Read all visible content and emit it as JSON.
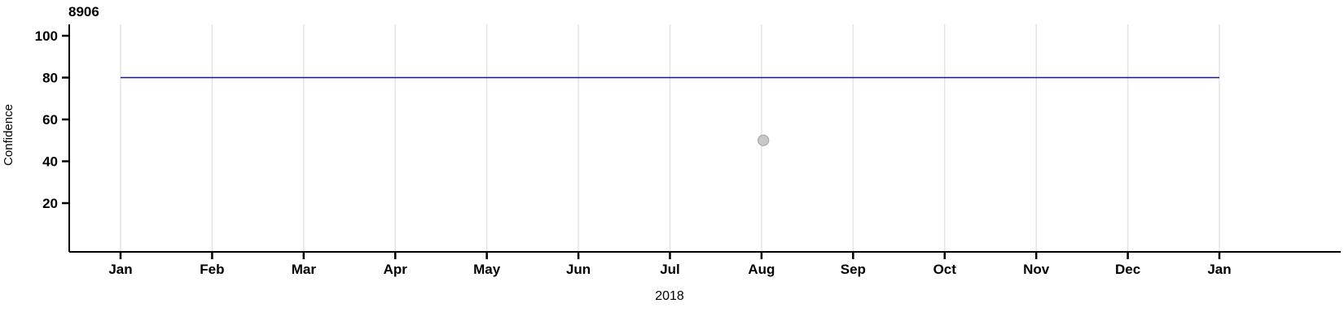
{
  "page": {
    "background_color": "#ffffff"
  },
  "chart_data": {
    "type": "line",
    "title": "8906",
    "xlabel": "2018",
    "ylabel": "Confidence",
    "x_tick_labels": [
      "Jan",
      "Feb",
      "Mar",
      "Apr",
      "May",
      "Jun",
      "Jul",
      "Aug",
      "Sep",
      "Oct",
      "Nov",
      "Dec",
      "Jan"
    ],
    "y_tick_values": [
      100,
      80,
      60,
      40,
      20
    ],
    "x_range_months": [
      0,
      12
    ],
    "ylim": [
      0,
      105
    ],
    "grid": {
      "vertical": true,
      "horizontal": false,
      "color": "#e4e4e4"
    },
    "axis_color": "#000000",
    "legend": "none",
    "series": [
      {
        "name": "confidence-line",
        "type": "line",
        "color": "#15158c",
        "points": [
          {
            "x": 0,
            "y": 80
          },
          {
            "x": 12,
            "y": 80
          }
        ]
      },
      {
        "name": "outlier-point",
        "type": "scatter",
        "color": "#c8c8c8",
        "stroke": "#a9a9a9",
        "points": [
          {
            "x": 7.02,
            "y": 50,
            "x_label": "Aug"
          }
        ]
      }
    ]
  }
}
